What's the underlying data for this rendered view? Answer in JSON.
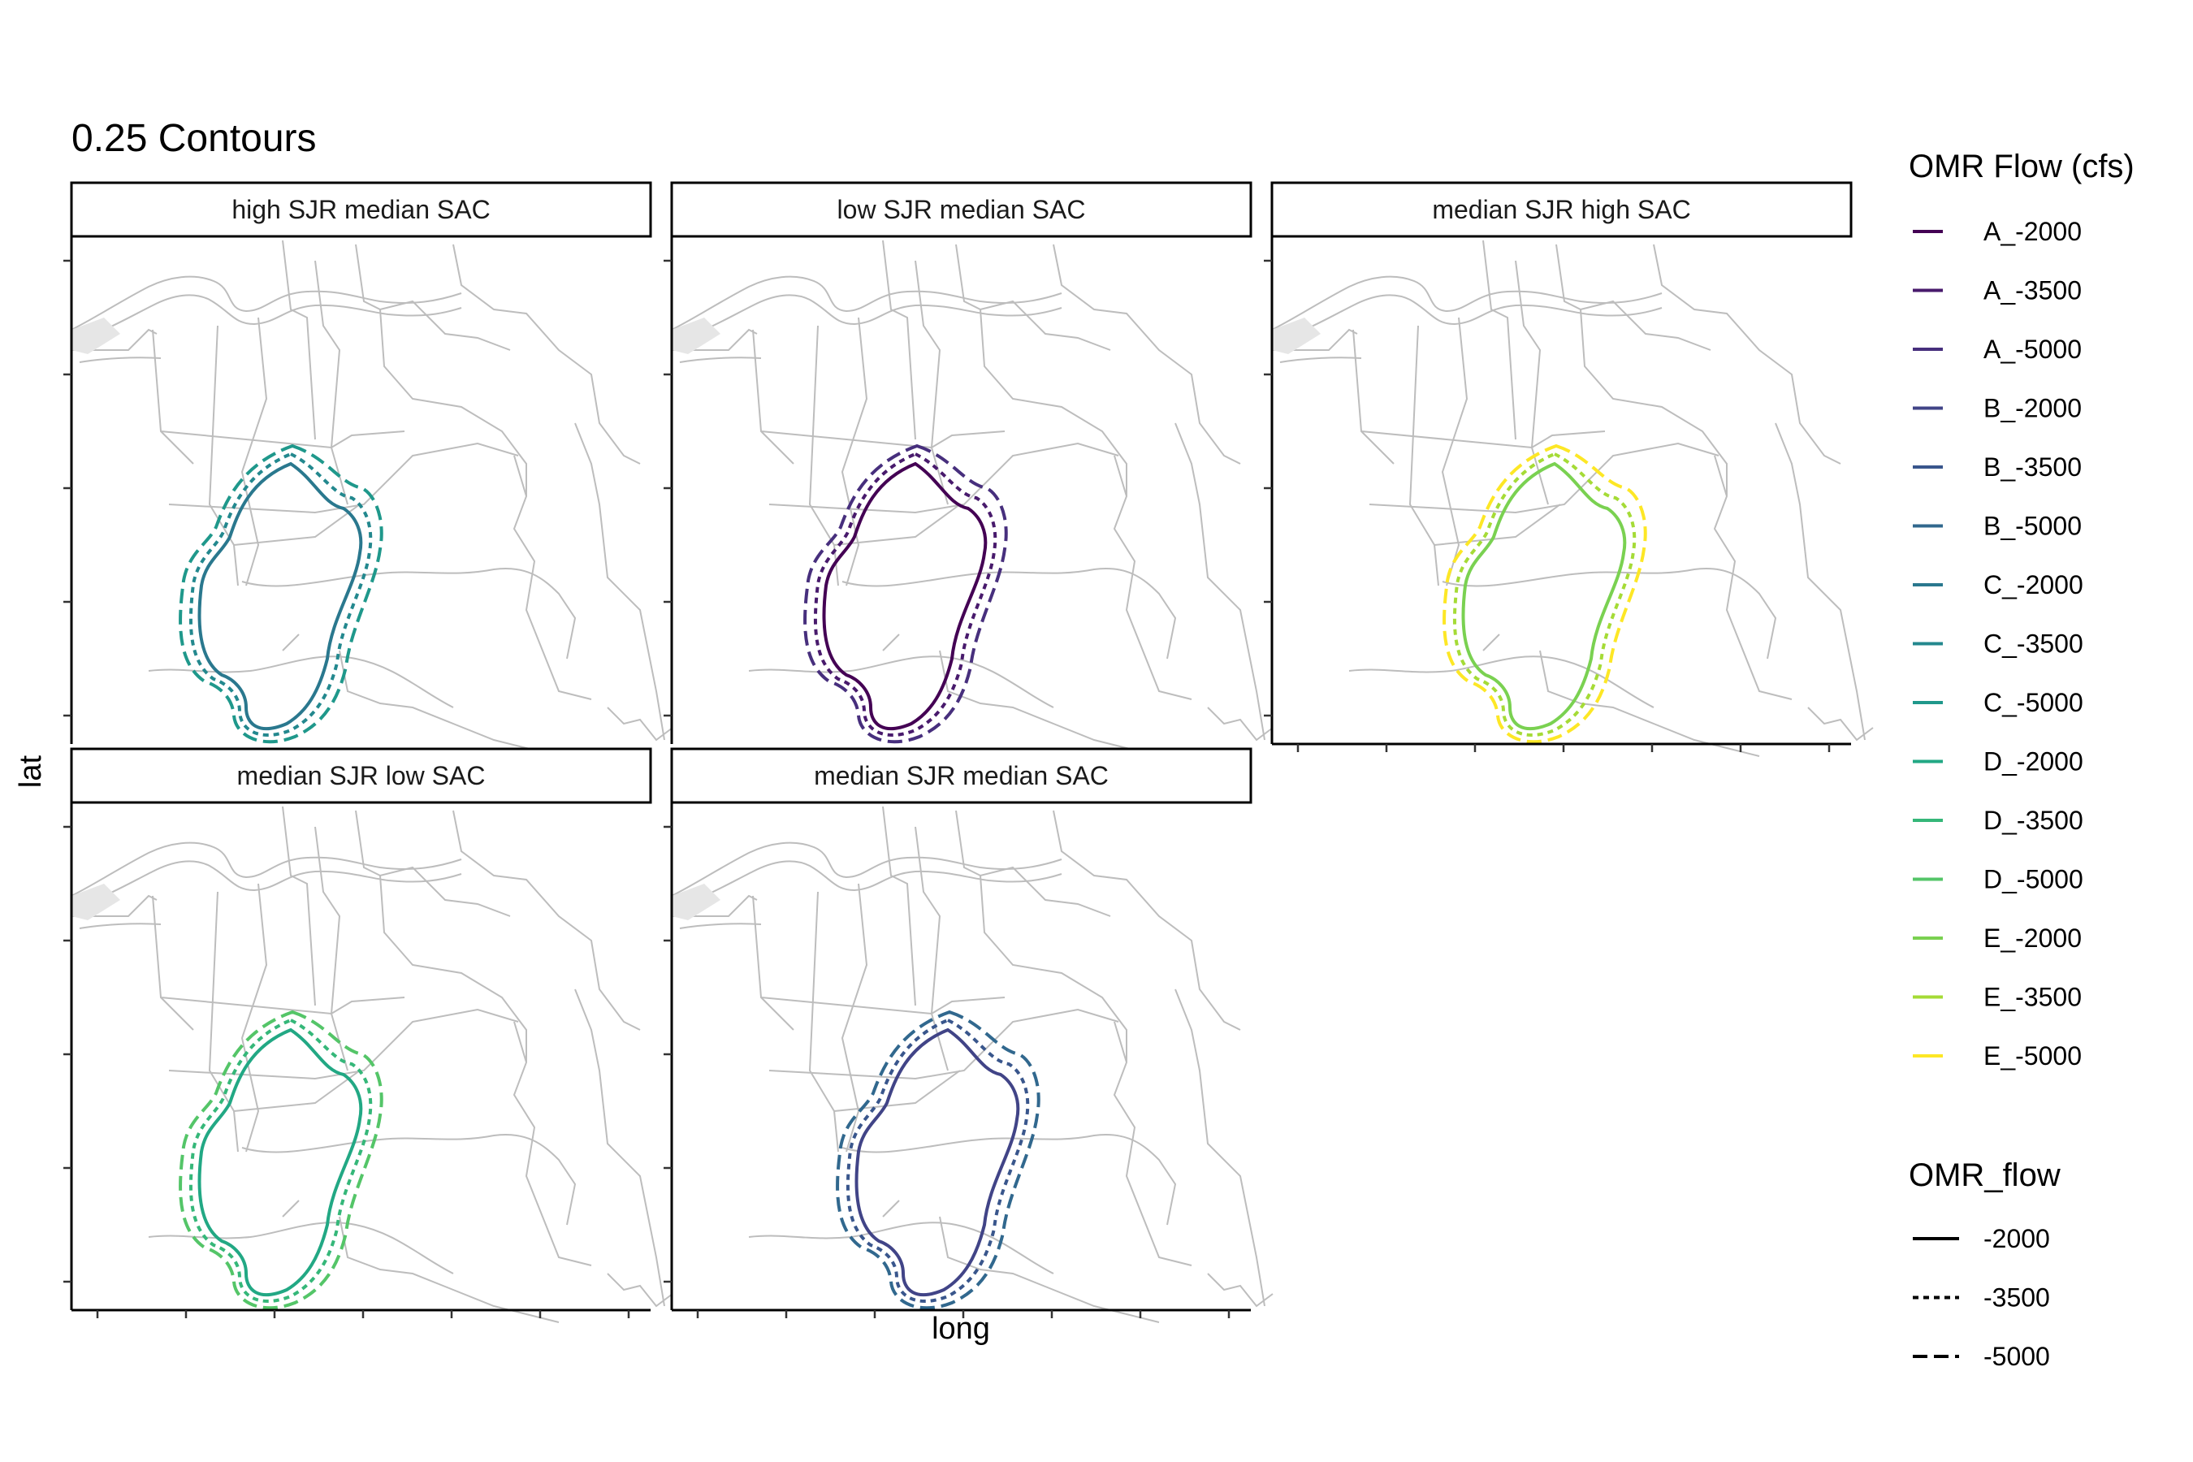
{
  "chart_data": {
    "type": "line",
    "title": "0.25 Contours",
    "xlabel": "long",
    "ylabel": "lat",
    "panels": [
      {
        "label": "high SJR median SAC",
        "group": "C"
      },
      {
        "label": "low SJR median SAC",
        "group": "A"
      },
      {
        "label": "median SJR high SAC",
        "group": "E"
      },
      {
        "label": "median SJR low SAC",
        "group": "D"
      },
      {
        "label": "median SJR median SAC",
        "group": "B"
      }
    ],
    "legend_color": {
      "title": "OMR Flow (cfs)",
      "placement": "right",
      "items": [
        {
          "label": "A_-2000",
          "color": "#440154"
        },
        {
          "label": "A_-3500",
          "color": "#481a6c"
        },
        {
          "label": "A_-5000",
          "color": "#472f7d"
        },
        {
          "label": "B_-2000",
          "color": "#414487"
        },
        {
          "label": "B_-3500",
          "color": "#39568c"
        },
        {
          "label": "B_-5000",
          "color": "#31688e"
        },
        {
          "label": "C_-2000",
          "color": "#2a788e"
        },
        {
          "label": "C_-3500",
          "color": "#23888e"
        },
        {
          "label": "C_-5000",
          "color": "#1f988b"
        },
        {
          "label": "D_-2000",
          "color": "#22a884"
        },
        {
          "label": "D_-3500",
          "color": "#35b779"
        },
        {
          "label": "D_-5000",
          "color": "#54c568"
        },
        {
          "label": "E_-2000",
          "color": "#7ad151"
        },
        {
          "label": "E_-3500",
          "color": "#a5db36"
        },
        {
          "label": "E_-5000",
          "color": "#fde725"
        }
      ]
    },
    "legend_linetype": {
      "title": "OMR_flow",
      "items": [
        {
          "label": "-2000",
          "dash": "solid"
        },
        {
          "label": "-3500",
          "dash": "dotted"
        },
        {
          "label": "-5000",
          "dash": "dashed"
        }
      ]
    },
    "grid": false
  }
}
